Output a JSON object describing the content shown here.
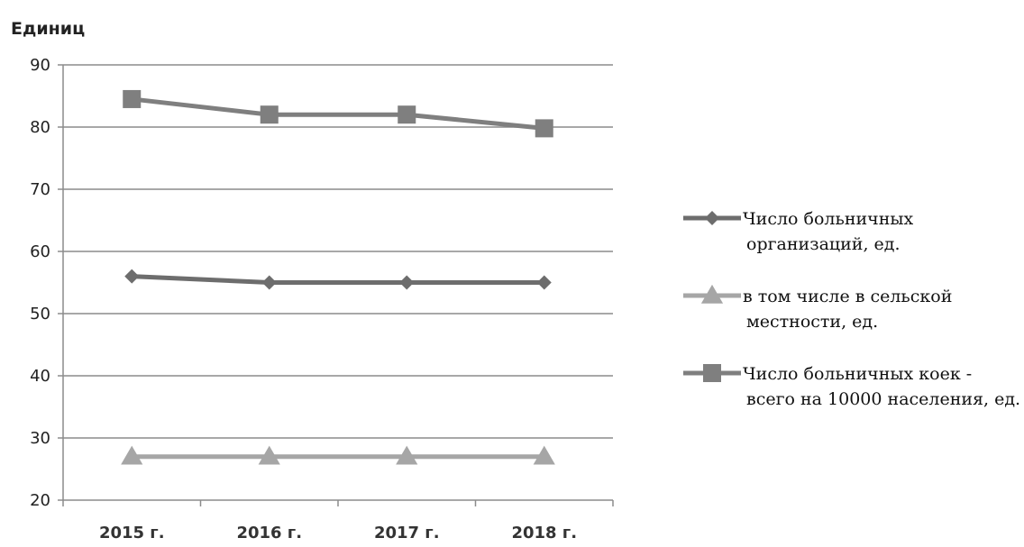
{
  "chart_data": {
    "type": "line",
    "ylabel": "Единиц",
    "categories": [
      "2015 г.",
      "2016 г.",
      "2017 г.",
      "2018 г."
    ],
    "ylim": [
      20,
      90
    ],
    "yticks": [
      20,
      30,
      40,
      50,
      60,
      70,
      80,
      90
    ],
    "grid": true,
    "legend_position": "right",
    "series": [
      {
        "name_lines": [
          "Число больничных",
          "организаций, ед."
        ],
        "marker": "diamond",
        "color": "#6d6d6d",
        "values": [
          56,
          55,
          55,
          55
        ]
      },
      {
        "name_lines": [
          "в том числе в сельской",
          "местности, ед."
        ],
        "marker": "triangle",
        "color": "#a6a6a6",
        "values": [
          27,
          27,
          27,
          27
        ]
      },
      {
        "name_lines": [
          "Число больничных коек -",
          "всего на 10000 населения, ед."
        ],
        "marker": "square",
        "color": "#7f7f7f",
        "values": [
          84.5,
          82,
          82,
          79.8
        ]
      }
    ]
  }
}
